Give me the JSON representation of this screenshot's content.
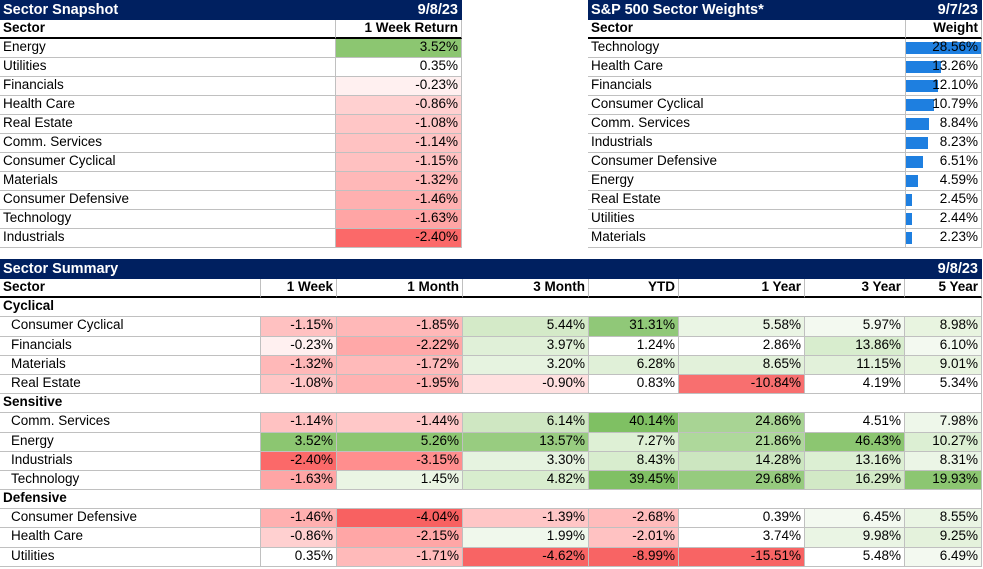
{
  "snapshot": {
    "title": "Sector Snapshot",
    "date": "9/8/23",
    "col_sector": "Sector",
    "col_return": "1 Week Return",
    "rows": [
      {
        "sector": "Energy",
        "ret": "3.52%",
        "color": "#8cc671"
      },
      {
        "sector": "Utilities",
        "ret": "0.35%",
        "color": "#ffffff"
      },
      {
        "sector": "Financials",
        "ret": "-0.23%",
        "color": "#fff0f0"
      },
      {
        "sector": "Health Care",
        "ret": "-0.86%",
        "color": "#ffd0d0"
      },
      {
        "sector": "Real Estate",
        "ret": "-1.08%",
        "color": "#ffc6c6"
      },
      {
        "sector": "Comm. Services",
        "ret": "-1.14%",
        "color": "#ffc2c2"
      },
      {
        "sector": "Consumer Cyclical",
        "ret": "-1.15%",
        "color": "#ffc1c1"
      },
      {
        "sector": "Materials",
        "ret": "-1.32%",
        "color": "#ffb8b8"
      },
      {
        "sector": "Consumer Defensive",
        "ret": "-1.46%",
        "color": "#ffb0b0"
      },
      {
        "sector": "Technology",
        "ret": "-1.63%",
        "color": "#ffa5a5"
      },
      {
        "sector": "Industrials",
        "ret": "-2.40%",
        "color": "#fb6969"
      }
    ]
  },
  "weights": {
    "title": "S&P 500 Sector Weights*",
    "date": "9/7/23",
    "col_sector": "Sector",
    "col_weight": "Weight",
    "rows": [
      {
        "sector": "Technology",
        "weight": "28.56%",
        "value": 28.56
      },
      {
        "sector": "Health Care",
        "weight": "13.26%",
        "value": 13.26
      },
      {
        "sector": "Financials",
        "weight": "12.10%",
        "value": 12.1
      },
      {
        "sector": "Consumer Cyclical",
        "weight": "10.79%",
        "value": 10.79
      },
      {
        "sector": "Comm. Services",
        "weight": "8.84%",
        "value": 8.84
      },
      {
        "sector": "Industrials",
        "weight": "8.23%",
        "value": 8.23
      },
      {
        "sector": "Consumer Defensive",
        "weight": "6.51%",
        "value": 6.51
      },
      {
        "sector": "Energy",
        "weight": "4.59%",
        "value": 4.59
      },
      {
        "sector": "Real Estate",
        "weight": "2.45%",
        "value": 2.45
      },
      {
        "sector": "Utilities",
        "weight": "2.44%",
        "value": 2.44
      },
      {
        "sector": "Materials",
        "weight": "2.23%",
        "value": 2.23
      }
    ]
  },
  "summary": {
    "title": "Sector Summary",
    "date": "9/8/23",
    "columns": [
      "Sector",
      "1 Week",
      "1 Month",
      "3 Month",
      "YTD",
      "1 Year",
      "3 Year",
      "5 Year"
    ],
    "groups": [
      {
        "name": "Cyclical",
        "rows": [
          {
            "sector": "Consumer Cyclical",
            "values": [
              "-1.15%",
              "-1.85%",
              "5.44%",
              "31.31%",
              "5.58%",
              "5.97%",
              "8.98%"
            ],
            "colors": [
              "#ffc1c1",
              "#ffb8b8",
              "#d4eac8",
              "#90c878",
              "#eaf5e4",
              "#f3f9f0",
              "#e8f4e0"
            ]
          },
          {
            "sector": "Financials",
            "values": [
              "-0.23%",
              "-2.22%",
              "3.97%",
              "1.24%",
              "2.86%",
              "13.86%",
              "6.10%"
            ],
            "colors": [
              "#fff0f0",
              "#ffa8a8",
              "#e0f0d8",
              "#ffffff",
              "#ffffff",
              "#d8edce",
              "#f3f9f0"
            ]
          },
          {
            "sector": "Materials",
            "values": [
              "-1.32%",
              "-1.72%",
              "3.20%",
              "6.28%",
              "8.65%",
              "11.15%",
              "9.01%"
            ],
            "colors": [
              "#ffb8b8",
              "#ffbaba",
              "#e6f3e0",
              "#e0f0d8",
              "#e2f1da",
              "#e2f1da",
              "#e8f4e0"
            ]
          },
          {
            "sector": "Real Estate",
            "values": [
              "-1.08%",
              "-1.95%",
              "-0.90%",
              "0.83%",
              "-10.84%",
              "4.19%",
              "5.34%"
            ],
            "colors": [
              "#ffc6c6",
              "#ffb2b2",
              "#ffe0e0",
              "#ffffff",
              "#f86f6f",
              "#ffffff",
              "#ffffff"
            ]
          }
        ]
      },
      {
        "name": "Sensitive",
        "rows": [
          {
            "sector": "Comm. Services",
            "values": [
              "-1.14%",
              "-1.44%",
              "6.14%",
              "40.14%",
              "24.86%",
              "4.51%",
              "7.98%"
            ],
            "colors": [
              "#ffc2c2",
              "#ffc8c8",
              "#cfe7c2",
              "#7fc063",
              "#a8d494",
              "#ffffff",
              "#eef7ea"
            ]
          },
          {
            "sector": "Energy",
            "values": [
              "3.52%",
              "5.26%",
              "13.57%",
              "7.27%",
              "21.86%",
              "46.43%",
              "10.27%"
            ],
            "colors": [
              "#8cc671",
              "#8cc671",
              "#98cc80",
              "#def0d5",
              "#aed89b",
              "#8cc671",
              "#dcefd3"
            ]
          },
          {
            "sector": "Industrials",
            "values": [
              "-2.40%",
              "-3.15%",
              "3.30%",
              "8.43%",
              "14.28%",
              "13.16%",
              "8.31%"
            ],
            "colors": [
              "#fb6969",
              "#ff8e8e",
              "#e6f3e0",
              "#d8edce",
              "#cce6c0",
              "#dcefd3",
              "#ebf5e6"
            ]
          },
          {
            "sector": "Technology",
            "values": [
              "-1.63%",
              "1.45%",
              "4.82%",
              "39.45%",
              "29.68%",
              "16.29%",
              "19.93%"
            ],
            "colors": [
              "#ffa5a5",
              "#eaf5e4",
              "#d8edce",
              "#80c064",
              "#96cb7e",
              "#d2e9c6",
              "#8cc671"
            ]
          }
        ]
      },
      {
        "name": "Defensive",
        "rows": [
          {
            "sector": "Consumer Defensive",
            "values": [
              "-1.46%",
              "-4.04%",
              "-1.39%",
              "-2.68%",
              "0.39%",
              "6.45%",
              "8.55%"
            ],
            "colors": [
              "#ffb0b0",
              "#f86161",
              "#ffc6c6",
              "#ffbcbc",
              "#ffffff",
              "#f3f9f0",
              "#eaf5e4"
            ]
          },
          {
            "sector": "Health Care",
            "values": [
              "-0.86%",
              "-2.15%",
              "1.99%",
              "-2.01%",
              "3.74%",
              "9.98%",
              "9.25%"
            ],
            "colors": [
              "#ffd0d0",
              "#ffa6a6",
              "#f0f8ec",
              "#ffc2c2",
              "#ffffff",
              "#eaf5e4",
              "#e4f2dc"
            ]
          },
          {
            "sector": "Utilities",
            "values": [
              "0.35%",
              "-1.71%",
              "-4.62%",
              "-8.99%",
              "-15.51%",
              "5.48%",
              "6.49%"
            ],
            "colors": [
              "#ffffff",
              "#ffbaba",
              "#f86464",
              "#f86464",
              "#f86464",
              "#ffffff",
              "#f3f9f0"
            ]
          }
        ]
      }
    ]
  }
}
